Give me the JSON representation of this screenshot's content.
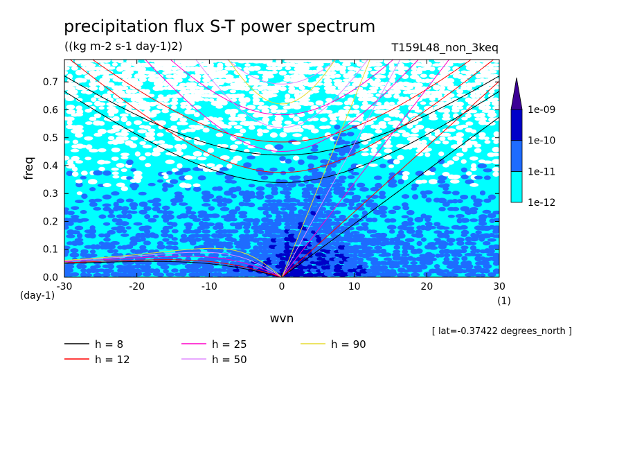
{
  "chart_data": {
    "type": "heatmap",
    "title": "precipitation flux S-T power spectrum",
    "subtitle": "((kg m-2 s-1 day-1)2)",
    "run_label": "T159L48_non_3keq",
    "xlabel": "wvn",
    "ylabel": "freq",
    "x_unit_label": "(1)",
    "y_unit_label": "(day-1)",
    "xlim": [
      -30,
      30
    ],
    "ylim": [
      0,
      0.78
    ],
    "x_ticks": [
      "-30",
      "-20",
      "-10",
      "0",
      "10",
      "20",
      "30"
    ],
    "y_ticks": [
      "0.0",
      "0.1",
      "0.2",
      "0.3",
      "0.4",
      "0.5",
      "0.6",
      "0.7"
    ],
    "x_tick_values": [
      -30,
      -20,
      -10,
      0,
      10,
      20,
      30
    ],
    "y_tick_values": [
      0,
      0.1,
      0.2,
      0.3,
      0.4,
      0.5,
      0.6,
      0.7
    ],
    "colorbar": {
      "levels": [
        "1e-12",
        "1e-11",
        "1e-10",
        "1e-09"
      ],
      "colors": [
        "#00ffff",
        "#1e6cff",
        "#0000c8",
        "#3c0096"
      ],
      "extend": "max"
    },
    "background_color": "#00ffff",
    "dispersion_curves": [
      {
        "h": 8,
        "label": "h =  8",
        "color": "#000000"
      },
      {
        "h": 12,
        "label": "h = 12",
        "color": "#ff0000"
      },
      {
        "h": 25,
        "label": "h = 25",
        "color": "#ff00c8"
      },
      {
        "h": 50,
        "label": "h = 50",
        "color": "#e08cff"
      },
      {
        "h": 90,
        "label": "h = 90",
        "color": "#e6dc32"
      }
    ],
    "annotation": "[ lat=-0.37422 degrees_north ]"
  }
}
